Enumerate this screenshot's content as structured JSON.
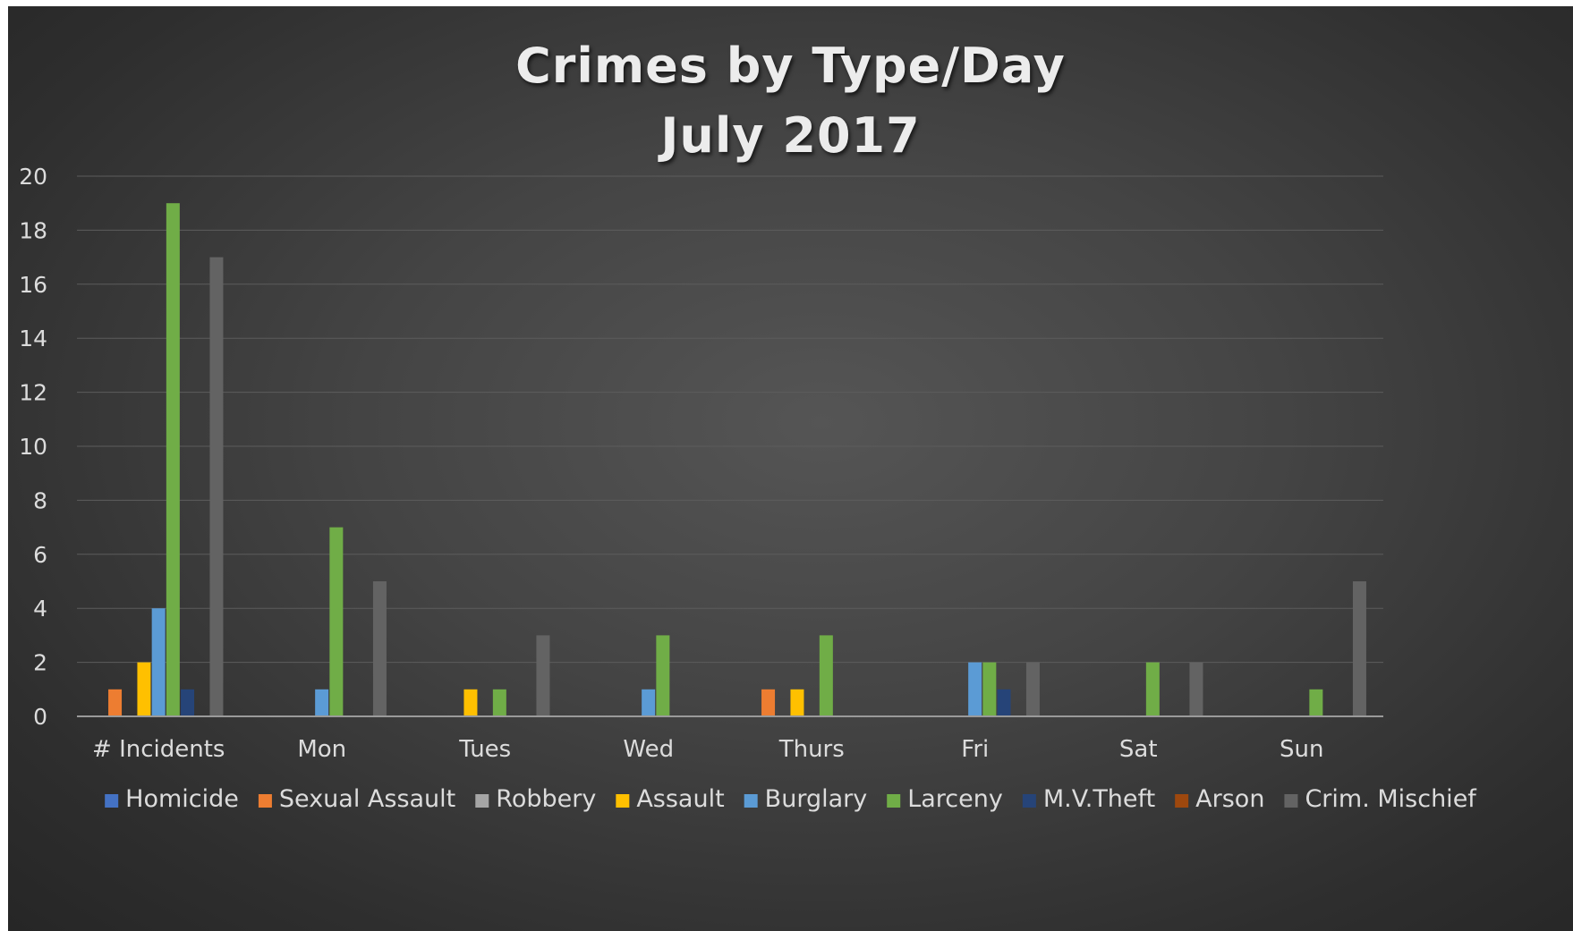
{
  "chart_data": {
    "type": "bar",
    "title_lines": [
      "Crimes by Type/Day",
      "July 2017"
    ],
    "categories": [
      "# Incidents",
      "Mon",
      "Tues",
      "Wed",
      "Thurs",
      "Fri",
      "Sat",
      "Sun"
    ],
    "series": [
      {
        "name": "Homicide",
        "color": "#4472c4",
        "values": [
          0,
          0,
          0,
          0,
          0,
          0,
          0,
          0
        ]
      },
      {
        "name": "Sexual Assault",
        "color": "#ed7d31",
        "values": [
          1,
          0,
          0,
          0,
          1,
          0,
          0,
          0
        ]
      },
      {
        "name": "Robbery",
        "color": "#a5a5a5",
        "values": [
          0,
          0,
          0,
          0,
          0,
          0,
          0,
          0
        ]
      },
      {
        "name": "Assault",
        "color": "#ffc000",
        "values": [
          2,
          0,
          1,
          0,
          1,
          0,
          0,
          0
        ]
      },
      {
        "name": "Burglary",
        "color": "#5b9bd5",
        "values": [
          4,
          1,
          0,
          1,
          0,
          2,
          0,
          0
        ]
      },
      {
        "name": "Larceny",
        "color": "#70ad47",
        "values": [
          19,
          7,
          1,
          3,
          3,
          2,
          2,
          1
        ]
      },
      {
        "name": "M.V.Theft",
        "color": "#264478",
        "values": [
          1,
          0,
          0,
          0,
          0,
          1,
          0,
          0
        ]
      },
      {
        "name": "Arson",
        "color": "#9e480e",
        "values": [
          0,
          0,
          0,
          0,
          0,
          0,
          0,
          0
        ]
      },
      {
        "name": "Crim. Mischief",
        "color": "#636363",
        "values": [
          17,
          5,
          3,
          0,
          0,
          2,
          2,
          5
        ]
      }
    ],
    "ylim": [
      0,
      20
    ],
    "yticks": [
      "0",
      "2",
      "4",
      "6",
      "8",
      "10",
      "12",
      "14",
      "16",
      "18",
      "20"
    ],
    "grid": true,
    "legend_position": "bottom"
  }
}
